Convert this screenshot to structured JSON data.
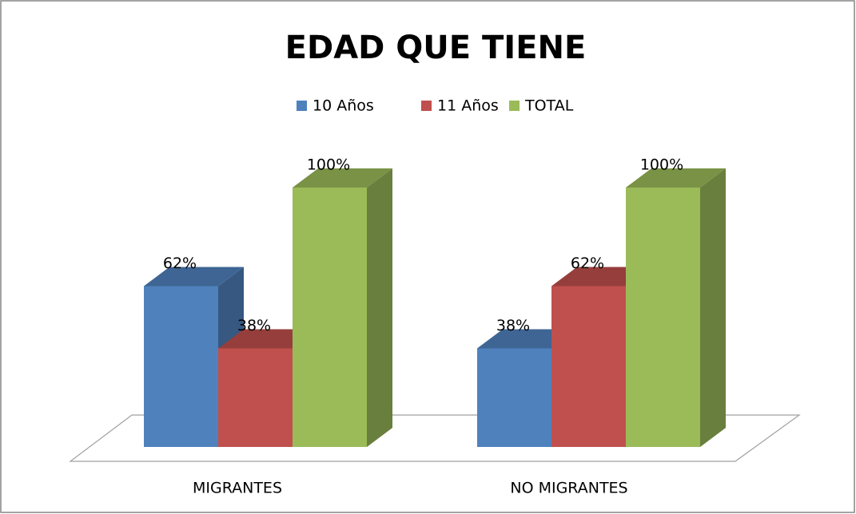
{
  "chart_data": {
    "type": "bar3d",
    "title": "EDAD QUE TIENE",
    "categories": [
      "MIGRANTES",
      "NO MIGRANTES"
    ],
    "series": [
      {
        "name": "10 Años",
        "color": "#4f81bd",
        "values": [
          62,
          38
        ],
        "value_labels": [
          "62%",
          "38%"
        ]
      },
      {
        "name": "11 Años",
        "color": "#c0504d",
        "values": [
          38,
          62
        ],
        "value_labels": [
          "38%",
          "62%"
        ]
      },
      {
        "name": "TOTAL",
        "color": "#9bbb59",
        "values": [
          100,
          100
        ],
        "value_labels": [
          "100%",
          "100%"
        ]
      }
    ],
    "legend": "top"
  }
}
